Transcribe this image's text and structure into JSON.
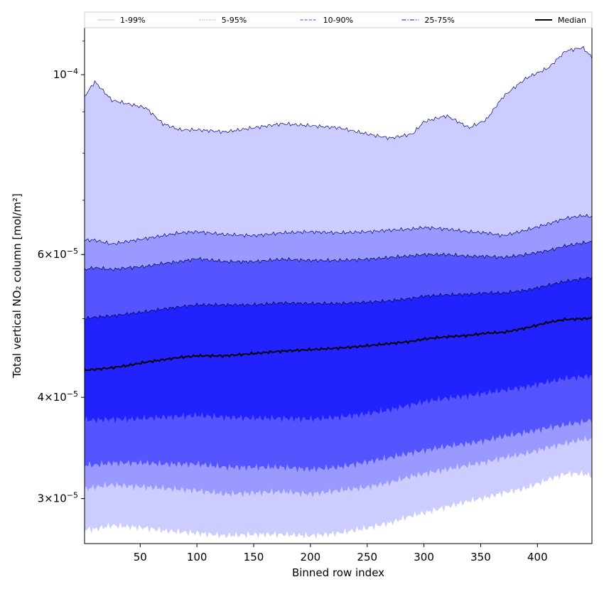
{
  "chart_data": {
    "type": "area",
    "xlabel": "Binned row index",
    "ylabel": "Total vertical NO₂ column [mol/m²]",
    "xlim": [
      1,
      448
    ],
    "ylim": [
      2.64e-05,
      0.0001145
    ],
    "yscale": "log",
    "grid": false,
    "legend_position": "top",
    "x_ticks": [
      50,
      100,
      150,
      200,
      250,
      300,
      350,
      400
    ],
    "y_ticks": [
      {
        "value": 3e-05,
        "label_base": "3",
        "label_times": "×",
        "label_ten": "10",
        "label_exp": "−5"
      },
      {
        "value": 4e-05,
        "label_base": "4",
        "label_times": "×",
        "label_ten": "10",
        "label_exp": "−5"
      },
      {
        "value": 6e-05,
        "label_base": "6",
        "label_times": "×",
        "label_ten": "10",
        "label_exp": "−5"
      },
      {
        "value": 0.0001,
        "label_base": "",
        "label_times": "",
        "label_ten": "10",
        "label_exp": "−4"
      }
    ],
    "x": [
      1,
      10,
      25,
      40,
      55,
      70,
      85,
      100,
      125,
      150,
      175,
      200,
      225,
      250,
      270,
      290,
      300,
      320,
      340,
      355,
      370,
      390,
      410,
      425,
      440,
      448
    ],
    "bands": [
      {
        "name": "1-99%",
        "fill": "#ccccff",
        "lower": [
          2.75e-05,
          2.75e-05,
          2.78e-05,
          2.77e-05,
          2.76e-05,
          2.74e-05,
          2.73e-05,
          2.72e-05,
          2.7e-05,
          2.71e-05,
          2.71e-05,
          2.7e-05,
          2.72e-05,
          2.76e-05,
          2.8e-05,
          2.86e-05,
          2.88e-05,
          2.93e-05,
          2.98e-05,
          3.01e-05,
          3.05e-05,
          3.09e-05,
          3.17e-05,
          3.22e-05,
          3.22e-05,
          3.2e-05
        ],
        "upper": [
          9.4e-05,
          9.8e-05,
          9.3e-05,
          9.2e-05,
          9.1e-05,
          8.7e-05,
          8.55e-05,
          8.55e-05,
          8.5e-05,
          8.6e-05,
          8.7e-05,
          8.65e-05,
          8.6e-05,
          8.45e-05,
          8.35e-05,
          8.45e-05,
          8.75e-05,
          8.9e-05,
          8.6e-05,
          8.8e-05,
          9.4e-05,
          9.9e-05,
          0.000102,
          0.000107,
          0.000108,
          0.000105
        ]
      },
      {
        "name": "5-95%",
        "fill": "#9999ff",
        "lower": [
          3.08e-05,
          3.1e-05,
          3.12e-05,
          3.11e-05,
          3.1e-05,
          3.09e-05,
          3.08e-05,
          3.07e-05,
          3.04e-05,
          3.05e-05,
          3.06e-05,
          3.04e-05,
          3.07e-05,
          3.1e-05,
          3.14e-05,
          3.2e-05,
          3.22e-05,
          3.26e-05,
          3.3e-05,
          3.33e-05,
          3.37e-05,
          3.41e-05,
          3.47e-05,
          3.51e-05,
          3.55e-05,
          3.55e-05
        ],
        "upper": [
          6.25e-05,
          6.25e-05,
          6.18e-05,
          6.23e-05,
          6.28e-05,
          6.33e-05,
          6.38e-05,
          6.4e-05,
          6.35e-05,
          6.33e-05,
          6.38e-05,
          6.4e-05,
          6.38e-05,
          6.4e-05,
          6.43e-05,
          6.45e-05,
          6.48e-05,
          6.45e-05,
          6.4e-05,
          6.38e-05,
          6.33e-05,
          6.43e-05,
          6.55e-05,
          6.65e-05,
          6.7e-05,
          6.68e-05
        ]
      },
      {
        "name": "10-90%",
        "fill": "#5555ff",
        "lower": [
          3.3e-05,
          3.3e-05,
          3.32e-05,
          3.32e-05,
          3.32e-05,
          3.31e-05,
          3.31e-05,
          3.31e-05,
          3.28e-05,
          3.28e-05,
          3.28e-05,
          3.26e-05,
          3.28e-05,
          3.33e-05,
          3.37e-05,
          3.42e-05,
          3.44e-05,
          3.48e-05,
          3.51e-05,
          3.54e-05,
          3.58e-05,
          3.62e-05,
          3.67e-05,
          3.7e-05,
          3.73e-05,
          3.75e-05
        ],
        "upper": [
          5.75e-05,
          5.78e-05,
          5.75e-05,
          5.78e-05,
          5.8e-05,
          5.85e-05,
          5.88e-05,
          5.93e-05,
          5.88e-05,
          5.88e-05,
          5.92e-05,
          5.9e-05,
          5.9e-05,
          5.92e-05,
          5.95e-05,
          5.98e-05,
          6e-05,
          6e-05,
          5.97e-05,
          5.97e-05,
          5.95e-05,
          6e-05,
          6.07e-05,
          6.15e-05,
          6.2e-05,
          6.22e-05
        ]
      },
      {
        "name": "25-75%",
        "fill": "#2222ff",
        "lower": [
          3.75e-05,
          3.75e-05,
          3.76e-05,
          3.76e-05,
          3.77e-05,
          3.78e-05,
          3.79e-05,
          3.8e-05,
          3.78e-05,
          3.77e-05,
          3.77e-05,
          3.76e-05,
          3.78e-05,
          3.82e-05,
          3.86e-05,
          3.92e-05,
          3.95e-05,
          3.99e-05,
          4.02e-05,
          4.05e-05,
          4.08e-05,
          4.12e-05,
          4.18e-05,
          4.22e-05,
          4.24e-05,
          4.25e-05
        ],
        "upper": [
          5e-05,
          5.02e-05,
          5.04e-05,
          5.07e-05,
          5.1e-05,
          5.14e-05,
          5.17e-05,
          5.2e-05,
          5.2e-05,
          5.2e-05,
          5.23e-05,
          5.22e-05,
          5.22e-05,
          5.24e-05,
          5.26e-05,
          5.3e-05,
          5.33e-05,
          5.35e-05,
          5.36e-05,
          5.38e-05,
          5.38e-05,
          5.42e-05,
          5.5e-05,
          5.56e-05,
          5.6e-05,
          5.62e-05
        ]
      }
    ],
    "median": {
      "name": "Median",
      "color": "#000000",
      "values": [
        4.32e-05,
        4.33e-05,
        4.35e-05,
        4.38e-05,
        4.42e-05,
        4.45e-05,
        4.48e-05,
        4.5e-05,
        4.5e-05,
        4.53e-05,
        4.56e-05,
        4.58e-05,
        4.6e-05,
        4.63e-05,
        4.66e-05,
        4.69e-05,
        4.72e-05,
        4.75e-05,
        4.77e-05,
        4.8e-05,
        4.81e-05,
        4.87e-05,
        4.95e-05,
        4.99e-05,
        5e-05,
        5.01e-05
      ]
    },
    "legend": [
      {
        "label": "1-99%",
        "color": "#ccccff",
        "dash": ""
      },
      {
        "label": "5-95%",
        "color": "#9999ff",
        "dash": "1,1.5"
      },
      {
        "label": "10-90%",
        "color": "#6666ff",
        "dash": "4,2"
      },
      {
        "label": "25-75%",
        "color": "#3333ff",
        "dash": "6,2,1.5,2"
      },
      {
        "label": "Median",
        "color": "#000000",
        "dash": ""
      }
    ]
  }
}
